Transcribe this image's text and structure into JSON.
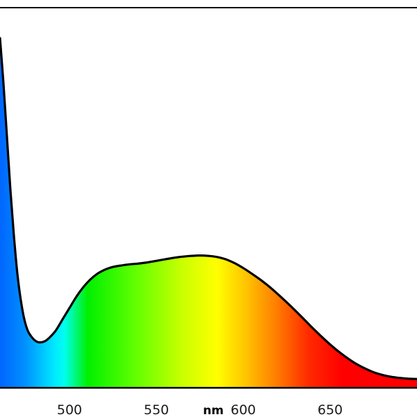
{
  "chart_data": {
    "type": "area",
    "title": "",
    "xlabel": "nm",
    "ylabel": "",
    "xlim": [
      460,
      700
    ],
    "ylim": [
      0,
      1
    ],
    "grid": false,
    "legend": "none",
    "x_ticks": [
      "500",
      "550",
      "600",
      "650"
    ],
    "x_tick_values": [
      500,
      550,
      600,
      650
    ],
    "series": [
      {
        "x": [
          460,
          462,
          464,
          466,
          468,
          470,
          472,
          474,
          476,
          478,
          480,
          482,
          484,
          486,
          488,
          492,
          496,
          500,
          504,
          508,
          512,
          516,
          520,
          525,
          530,
          535,
          540,
          545,
          550,
          555,
          560,
          565,
          570,
          575,
          580,
          585,
          590,
          595,
          600,
          605,
          610,
          615,
          620,
          625,
          630,
          635,
          640,
          645,
          650,
          655,
          660,
          665,
          670,
          675,
          680,
          685,
          690,
          695,
          700
        ],
        "y": [
          0.92,
          0.8,
          0.66,
          0.52,
          0.4,
          0.3,
          0.23,
          0.18,
          0.15,
          0.135,
          0.125,
          0.12,
          0.12,
          0.123,
          0.13,
          0.15,
          0.18,
          0.21,
          0.24,
          0.265,
          0.285,
          0.3,
          0.31,
          0.318,
          0.322,
          0.325,
          0.327,
          0.33,
          0.334,
          0.338,
          0.342,
          0.345,
          0.347,
          0.348,
          0.347,
          0.344,
          0.338,
          0.328,
          0.315,
          0.3,
          0.284,
          0.266,
          0.246,
          0.225,
          0.203,
          0.18,
          0.157,
          0.135,
          0.114,
          0.095,
          0.078,
          0.063,
          0.051,
          0.041,
          0.034,
          0.029,
          0.026,
          0.024,
          0.023
        ]
      }
    ],
    "colors": {
      "curve": "#000000",
      "frame": "#000000",
      "background": "#ffffff"
    }
  }
}
